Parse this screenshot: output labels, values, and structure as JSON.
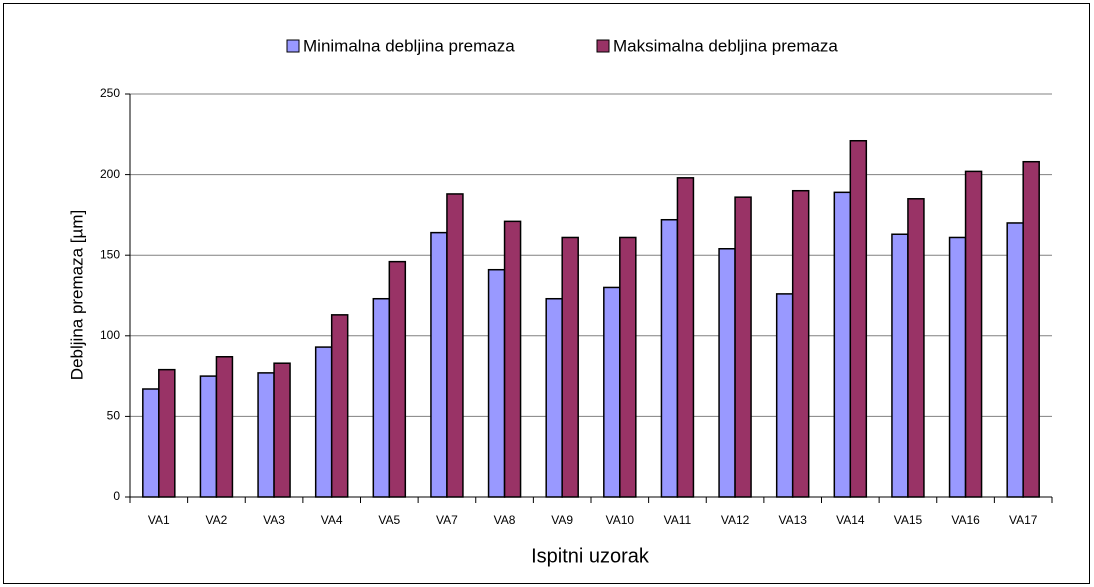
{
  "chart_data": {
    "type": "bar",
    "xlabel": "Ispitni uzorak",
    "ylabel": "Debljina premaza [µm]",
    "categories": [
      "VA1",
      "VA2",
      "VA3",
      "VA4",
      "VA5",
      "VA7",
      "VA8",
      "VA9",
      "VA10",
      "VA11",
      "VA12",
      "VA13",
      "VA14",
      "VA15",
      "VA16",
      "VA17"
    ],
    "series": [
      {
        "name": "Minimalna debljina premaza",
        "color": "#9999ff",
        "values": [
          67,
          75,
          77,
          93,
          123,
          164,
          141,
          123,
          130,
          172,
          154,
          126,
          189,
          163,
          161,
          170
        ]
      },
      {
        "name": "Maksimalna debljina premaza",
        "color": "#993366",
        "values": [
          79,
          87,
          83,
          113,
          146,
          188,
          171,
          161,
          161,
          198,
          186,
          190,
          221,
          185,
          202,
          208
        ]
      }
    ],
    "ylim": [
      0,
      250
    ],
    "yticks": [
      0,
      50,
      100,
      150,
      200,
      250
    ],
    "grid": true,
    "legend": "top"
  }
}
